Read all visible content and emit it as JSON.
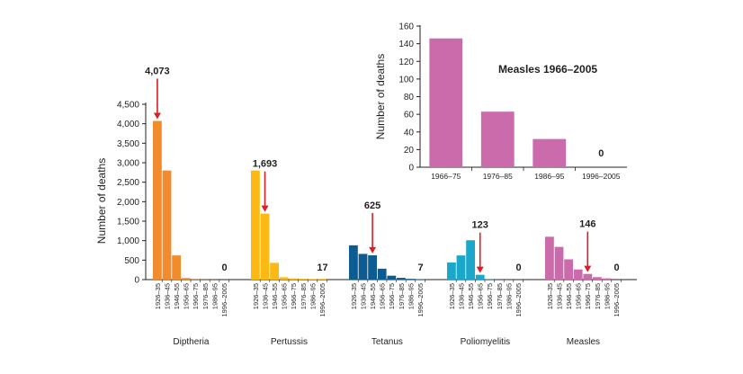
{
  "chart_data": [
    {
      "type": "bar",
      "ylabel": "Number of deaths",
      "ylim": [
        0,
        4500
      ],
      "yticks": [
        "0",
        "500",
        "1,000",
        "1,500",
        "2,000",
        "2,500",
        "3,000",
        "3,500",
        "4,000",
        "4,500"
      ],
      "periods": [
        "1926–35",
        "1936–45",
        "1946–55",
        "1956–65",
        "1966–75",
        "1976–85",
        "1986–95",
        "1996–2005"
      ],
      "grid": false,
      "groups": [
        {
          "name": "Diptheria",
          "color": "#f28b2b",
          "values": [
            4073,
            2800,
            620,
            40,
            5,
            2,
            1,
            0
          ],
          "annotation": {
            "label": "4,073",
            "period_index": 0
          },
          "final_label": "0"
        },
        {
          "name": "Pertussis",
          "color": "#fdb913",
          "values": [
            2800,
            1693,
            430,
            60,
            30,
            20,
            15,
            17
          ],
          "annotation": {
            "label": "1,693",
            "period_index": 1
          },
          "final_label": "17"
        },
        {
          "name": "Tetanus",
          "color": "#0d5c91",
          "values": [
            880,
            660,
            625,
            280,
            100,
            45,
            20,
            7
          ],
          "annotation": {
            "label": "625",
            "period_index": 2
          },
          "final_label": "7"
        },
        {
          "name": "Poliomyelitis",
          "color": "#1aa7c9",
          "values": [
            440,
            620,
            1010,
            123,
            5,
            1,
            0,
            0
          ],
          "annotation": {
            "label": "123",
            "period_index": 3
          },
          "final_label": "0"
        },
        {
          "name": "Measles",
          "color": "#cc6bac",
          "values": [
            1100,
            840,
            520,
            260,
            146,
            63,
            32,
            0
          ],
          "annotation": {
            "label": "146",
            "period_index": 4
          },
          "final_label": "0"
        }
      ],
      "annotation_arrow_color": "#d71f26"
    },
    {
      "type": "bar",
      "title": "Measles 1966–2005",
      "ylabel": "Number of deaths",
      "ylim": [
        0,
        160
      ],
      "yticks": [
        "0",
        "20",
        "40",
        "60",
        "80",
        "100",
        "120",
        "140",
        "160"
      ],
      "categories": [
        "1966–75",
        "1976–85",
        "1986–95",
        "1996–2005"
      ],
      "values": [
        146,
        63,
        32,
        0
      ],
      "final_label": "0",
      "color": "#cc6bac",
      "grid": false
    }
  ]
}
